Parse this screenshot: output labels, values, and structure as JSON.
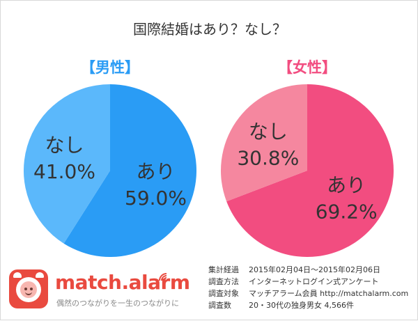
{
  "chart_data": [
    {
      "type": "pie",
      "title": "国際結婚はあり？なし？",
      "subtitle": "【男性】",
      "slices": [
        {
          "label": "あり",
          "value": 59.0,
          "value_label": "59.0%",
          "color": "#2a9cf5"
        },
        {
          "label": "なし",
          "value": 41.0,
          "value_label": "41.0%",
          "color": "#5bb8fb"
        }
      ]
    },
    {
      "type": "pie",
      "title": "国際結婚はあり？なし？",
      "subtitle": "【女性】",
      "slices": [
        {
          "label": "あり",
          "value": 69.2,
          "value_label": "69.2%",
          "color": "#f24d80"
        },
        {
          "label": "なし",
          "value": 30.8,
          "value_label": "30.8%",
          "color": "#f5879f"
        }
      ]
    }
  ],
  "colors": {
    "male_heading": "#2a9cf5",
    "female_heading": "#f24d80"
  },
  "brand": {
    "name": "match",
    "name_dot": ".",
    "name_suffix": "alarm",
    "tagline": "偶然のつながりを一生のつながりに",
    "icon": "alarm-clock-icon"
  },
  "survey": [
    {
      "key": "集計経過",
      "value": "2015年02月04日〜2015年02月06日"
    },
    {
      "key": "調査方法",
      "value": "インターネットログイン式アンケート"
    },
    {
      "key": "調査対象",
      "value": "マッチアラーム会員 http://matchalarm.com"
    },
    {
      "key": "調査数",
      "value": "20・30代の独身男女 4,566件"
    }
  ]
}
